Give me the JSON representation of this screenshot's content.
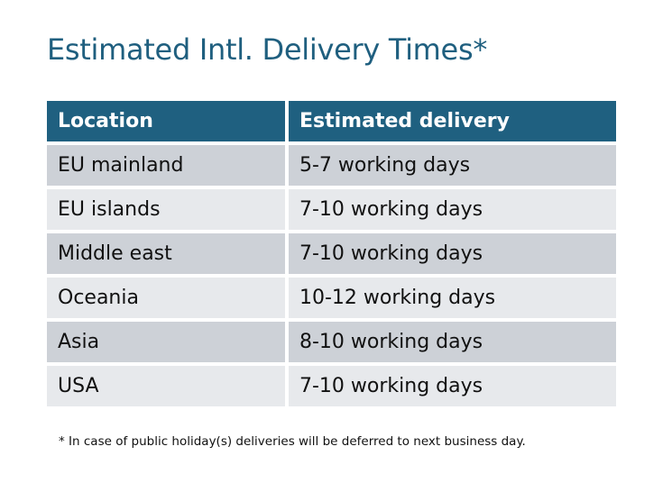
{
  "title": "Estimated Intl. Delivery Times*",
  "table": {
    "headers": [
      "Location",
      "Estimated delivery"
    ],
    "rows": [
      [
        "EU mainland",
        "5-7 working days"
      ],
      [
        "EU islands",
        "7-10 working days"
      ],
      [
        "Middle east",
        "7-10 working days"
      ],
      [
        "Oceania",
        "10-12 working days"
      ],
      [
        "Asia",
        "8-10 working days"
      ],
      [
        "USA",
        "7-10 working days"
      ]
    ]
  },
  "footnote": "* In case of public holiday(s) deliveries will be deferred to next business day.",
  "colors": {
    "header": "#1f6080",
    "title": "#1f5f7f",
    "row_dark": "#cdd1d7",
    "row_light": "#e7e9ec"
  }
}
